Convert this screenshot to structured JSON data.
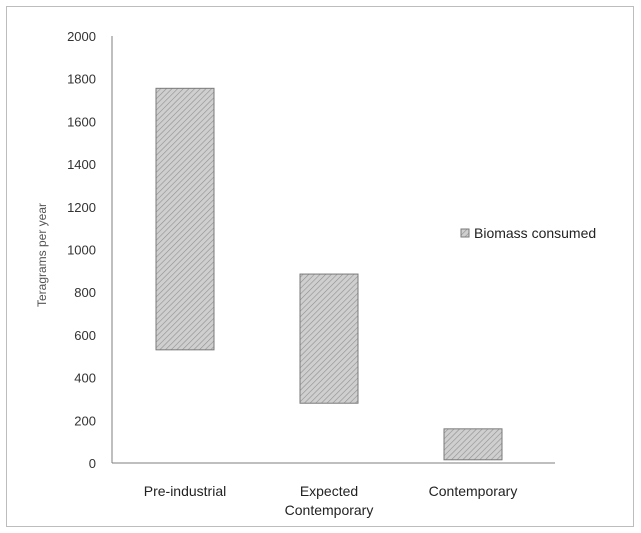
{
  "chart_data": {
    "type": "bar",
    "subtype": "floating-range",
    "title": "",
    "xlabel": "",
    "ylabel": "Teragrams per year",
    "ylim": [
      0,
      2000
    ],
    "yticks": [
      0,
      200,
      400,
      600,
      800,
      1000,
      1200,
      1400,
      1600,
      1800,
      2000
    ],
    "categories": [
      "Pre-industrial",
      "Expected Contemporary",
      "Contemporary"
    ],
    "series": [
      {
        "name": "Biomass consumed",
        "low": [
          530,
          280,
          15
        ],
        "high": [
          1755,
          885,
          160
        ]
      }
    ],
    "legend_position": "right",
    "grid": false,
    "bar_fill": "#cfcfcf",
    "bar_hatch": "#8f8f8f",
    "bar_border": "#7a7a7a"
  }
}
